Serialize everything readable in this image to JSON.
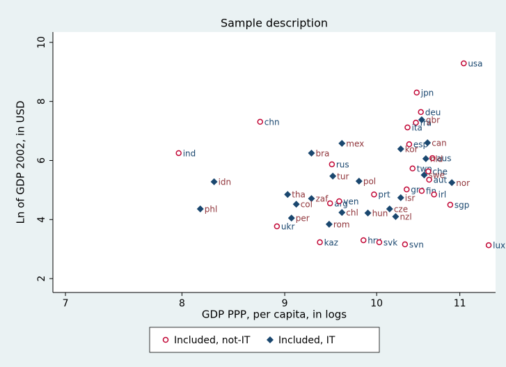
{
  "chart_data": {
    "type": "scatter",
    "title": "Sample description",
    "xlabel": "GDP PPP, per capita, in logs",
    "ylabel": "Ln of GDP 2002, in USD",
    "xscale": "log",
    "xlim": [
      6.9,
      11.46
    ],
    "xticks": [
      7,
      8,
      9,
      10,
      11
    ],
    "ylim": [
      1.53,
      10.35
    ],
    "yticks": [
      2,
      4,
      6,
      8,
      10
    ],
    "grid": false,
    "legend": "bottom",
    "series": [
      {
        "name": "Included, not-IT",
        "color": "#c10534",
        "marker": "circle",
        "labels": [
          "usa",
          "jpn",
          "deu",
          "fra",
          "ita",
          "chn",
          "esp",
          "ind",
          "aus",
          "rus",
          "twn",
          "che",
          "aut",
          "prt",
          "grc",
          "fin",
          "irl",
          "ukr",
          "arg",
          "ven",
          "hrv",
          "svk",
          "svn",
          "kaz",
          "sgp",
          "lux"
        ],
        "x": [
          11.05,
          10.47,
          10.52,
          10.46,
          10.36,
          8.75,
          10.38,
          7.97,
          10.66,
          9.5,
          10.42,
          10.61,
          10.62,
          9.97,
          10.35,
          10.53,
          10.68,
          8.92,
          9.48,
          9.58,
          9.85,
          10.03,
          10.33,
          9.37,
          10.88,
          11.37
        ],
        "values": [
          9.29,
          8.3,
          7.64,
          7.28,
          7.12,
          7.31,
          6.55,
          6.25,
          6.08,
          5.87,
          5.73,
          5.63,
          5.35,
          4.85,
          5.02,
          4.97,
          4.85,
          3.77,
          4.55,
          4.62,
          3.3,
          3.23,
          3.16,
          3.23,
          4.5,
          3.13
        ]
      },
      {
        "name": "Included, IT",
        "color": "#1a476f",
        "marker": "diamond",
        "labels": [
          "gbr",
          "can",
          "kor",
          "nld",
          "mex",
          "bra",
          "tur",
          "swe",
          "nor",
          "idn",
          "pol",
          "tha",
          "zaf",
          "col",
          "chl",
          "per",
          "rom",
          "hun",
          "cze",
          "nzl",
          "isr",
          "phl"
        ],
        "x": [
          10.53,
          10.6,
          10.28,
          10.58,
          9.61,
          9.28,
          9.51,
          10.56,
          10.9,
          8.3,
          9.8,
          9.03,
          9.28,
          9.12,
          9.61,
          9.07,
          9.47,
          9.9,
          10.15,
          10.22,
          10.28,
          8.17
        ],
        "values": [
          7.38,
          6.6,
          6.39,
          6.06,
          6.58,
          6.25,
          5.47,
          5.51,
          5.25,
          5.28,
          5.3,
          4.85,
          4.71,
          4.52,
          4.24,
          4.05,
          3.84,
          4.22,
          4.36,
          4.1,
          4.74,
          4.36
        ]
      }
    ]
  }
}
